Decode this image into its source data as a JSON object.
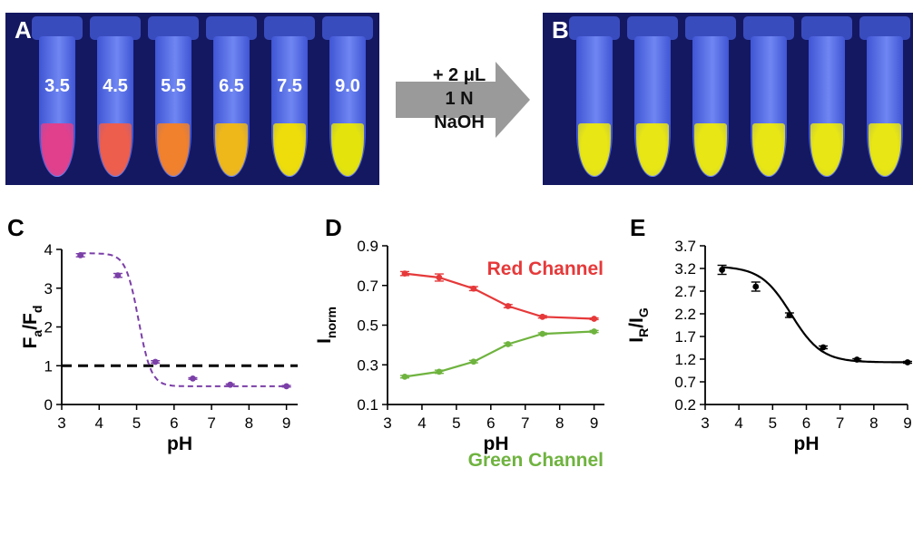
{
  "panels": {
    "a": {
      "label": "A",
      "tube_labels": [
        "3.5",
        "4.5",
        "5.5",
        "6.5",
        "7.5",
        "9.0"
      ],
      "liquid_colors": [
        "#e0408c",
        "#ee5e4c",
        "#f1812c",
        "#efb81a",
        "#eedd0a",
        "#e4e40c"
      ]
    },
    "b": {
      "label": "B",
      "liquid_colors": [
        "#e8e614",
        "#e8e614",
        "#e8e614",
        "#e8e614",
        "#e8e614",
        "#e8e614"
      ]
    }
  },
  "arrow": {
    "lines": [
      "+ 2 μL",
      "1 N",
      "NaOH"
    ],
    "color": "#9a9a9a"
  },
  "chart_data": [
    {
      "panel": "C",
      "type": "scatter",
      "ylabel": {
        "main": "F",
        "sub1": "a",
        "slash": "/F",
        "sub2": "d"
      },
      "xlabel": "pH",
      "xlim": [
        3,
        9.3
      ],
      "ylim": [
        0,
        4
      ],
      "xticks": [
        3,
        4,
        5,
        6,
        7,
        8,
        9
      ],
      "yticks": [
        0,
        1,
        2,
        3,
        4
      ],
      "series": [
        {
          "x": [
            3.5,
            4.5,
            5.5,
            6.5,
            7.5,
            9
          ],
          "y": [
            3.85,
            3.33,
            1.1,
            0.67,
            0.51,
            0.47
          ],
          "err": [
            0.04,
            0.05,
            0.03,
            0.02,
            0.02,
            0.02
          ],
          "color": "#7b3fa8",
          "line": "dashed-fit"
        }
      ],
      "reference_line": {
        "y": 1,
        "color": "#000000",
        "style": "dashed"
      }
    },
    {
      "panel": "D",
      "type": "line",
      "ylabel": {
        "main": "I",
        "sub1": "norm"
      },
      "xlabel": "pH",
      "xlim": [
        3,
        9.3
      ],
      "ylim": [
        0.1,
        0.9
      ],
      "xticks": [
        3,
        4,
        5,
        6,
        7,
        8,
        9
      ],
      "yticks": [
        0.1,
        0.3,
        0.5,
        0.7,
        0.9
      ],
      "series": [
        {
          "name": "Red Channel",
          "x": [
            3.5,
            4.5,
            5.5,
            6.5,
            7.5,
            9
          ],
          "y": [
            0.76,
            0.74,
            0.684,
            0.596,
            0.542,
            0.532
          ],
          "err": [
            0.01,
            0.018,
            0.01,
            0.008,
            0.006,
            0.004
          ],
          "color": "#e6393a"
        },
        {
          "name": "Green Channel",
          "x": [
            3.5,
            4.5,
            5.5,
            6.5,
            7.5,
            9
          ],
          "y": [
            0.24,
            0.265,
            0.316,
            0.404,
            0.456,
            0.468
          ],
          "err": [
            0.006,
            0.008,
            0.006,
            0.006,
            0.005,
            0.005
          ],
          "color": "#6fb33f"
        }
      ]
    },
    {
      "panel": "E",
      "type": "scatter",
      "ylabel": {
        "main": "I",
        "sub1": "R",
        "slash": "/I",
        "sub2": "G"
      },
      "xlabel": "pH",
      "xlim": [
        3,
        9
      ],
      "ylim": [
        0.2,
        3.7
      ],
      "xticks": [
        3,
        4,
        5,
        6,
        7,
        8,
        9
      ],
      "yticks": [
        0.2,
        0.7,
        1.2,
        1.7,
        2.2,
        2.7,
        3.2,
        3.7
      ],
      "series": [
        {
          "x": [
            3.5,
            4.5,
            5.5,
            6.5,
            7.5,
            9
          ],
          "y": [
            3.17,
            2.8,
            2.17,
            1.46,
            1.19,
            1.13
          ],
          "err": [
            0.1,
            0.1,
            0.05,
            0.03,
            0.02,
            0.02
          ],
          "color": "#000000",
          "line": "solid-fit"
        }
      ]
    }
  ]
}
